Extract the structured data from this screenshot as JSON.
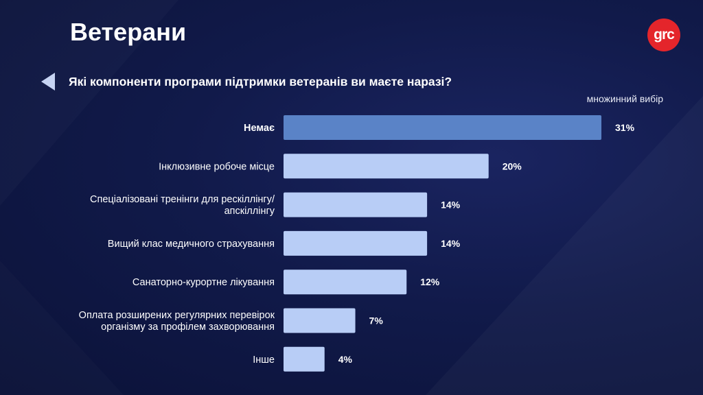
{
  "page": {
    "title": "Ветерани",
    "logo_text": "grc",
    "question": "Які компоненти програми підтримки ветеранів ви маєте наразі?",
    "note": "множинний вибір"
  },
  "colors": {
    "highlight_bar": "#5a83c7",
    "bar": "#b8cdf6",
    "logo": "#e4252b"
  },
  "chart_data": {
    "type": "bar",
    "orientation": "horizontal",
    "categories": [
      [
        "Немає"
      ],
      [
        "Інклюзивне робоче місце"
      ],
      [
        "Спеціалізовані тренінги для рескіллінгу/",
        "апскіллінгу"
      ],
      [
        "Вищий клас медичного страхування"
      ],
      [
        "Санаторно-курортне лікування"
      ],
      [
        "Оплата розширених регулярних перевірок",
        "організму за профілем захворювання"
      ],
      [
        "Інше"
      ]
    ],
    "values": [
      31,
      20,
      14,
      14,
      12,
      7,
      4
    ],
    "value_labels": [
      "31%",
      "20%",
      "14%",
      "14%",
      "12%",
      "7%",
      "4%"
    ],
    "highlight_index": 0,
    "unit": "%",
    "xlim": [
      0,
      31
    ]
  }
}
